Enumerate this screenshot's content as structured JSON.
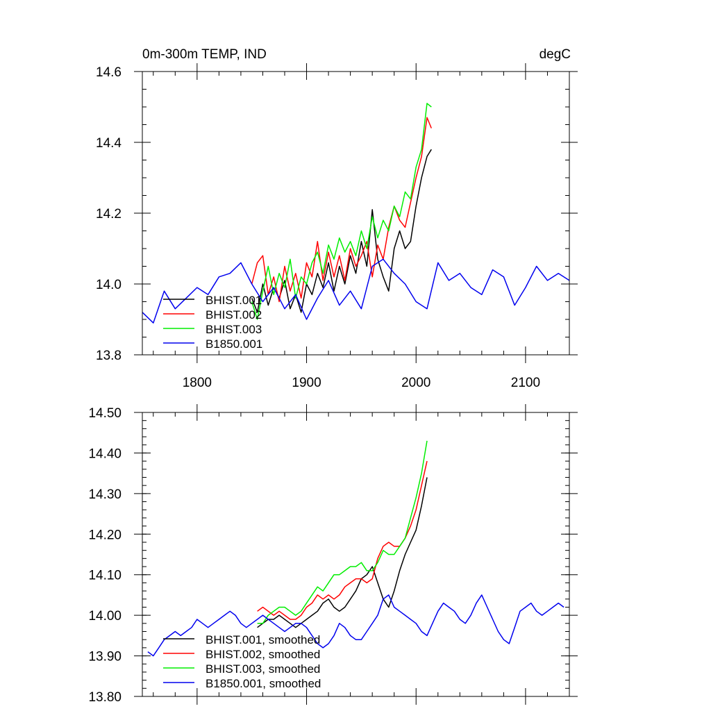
{
  "chart_data": [
    {
      "type": "line",
      "title": "0m-300m TEMP, IND",
      "units": "degC",
      "xlim": [
        1750,
        2140
      ],
      "ylim": [
        13.8,
        14.6
      ],
      "xticks": [
        1800,
        1900,
        2000,
        2100
      ],
      "yticks": [
        13.8,
        14.0,
        14.2,
        14.4,
        14.6
      ],
      "ytick_labels": [
        "13.8",
        "14.0",
        "14.2",
        "14.4",
        "14.6"
      ],
      "xtick_labels": [
        "1800",
        "1900",
        "2000",
        "2100"
      ],
      "legend_position": "bottom-left",
      "series": [
        {
          "name": "BHIST.001",
          "color": "#000000",
          "x": [
            1850,
            1855,
            1860,
            1865,
            1870,
            1875,
            1880,
            1885,
            1890,
            1895,
            1900,
            1905,
            1910,
            1915,
            1920,
            1925,
            1930,
            1935,
            1940,
            1945,
            1950,
            1955,
            1960,
            1965,
            1970,
            1975,
            1980,
            1985,
            1990,
            1995,
            2000,
            2005,
            2010,
            2014
          ],
          "y": [
            13.96,
            13.92,
            14.0,
            13.94,
            13.99,
            13.96,
            14.01,
            13.93,
            13.97,
            13.92,
            14.0,
            13.97,
            14.03,
            13.99,
            14.06,
            13.98,
            14.05,
            14.0,
            14.08,
            14.03,
            14.12,
            14.05,
            14.21,
            14.07,
            14.02,
            13.98,
            14.1,
            14.15,
            14.1,
            14.12,
            14.22,
            14.3,
            14.36,
            14.38
          ]
        },
        {
          "name": "BHIST.002",
          "color": "#ff0000",
          "x": [
            1850,
            1855,
            1860,
            1865,
            1870,
            1875,
            1880,
            1885,
            1890,
            1895,
            1900,
            1905,
            1910,
            1915,
            1920,
            1925,
            1930,
            1935,
            1940,
            1945,
            1950,
            1955,
            1960,
            1965,
            1970,
            1975,
            1980,
            1985,
            1990,
            1995,
            2000,
            2005,
            2010,
            2014
          ],
          "y": [
            14.0,
            14.06,
            14.08,
            13.97,
            14.02,
            13.95,
            14.05,
            13.98,
            14.03,
            13.96,
            14.06,
            14.02,
            14.12,
            14.01,
            14.09,
            14.02,
            14.08,
            14.01,
            14.1,
            14.05,
            14.08,
            14.12,
            14.02,
            14.11,
            14.07,
            14.16,
            14.22,
            14.18,
            14.16,
            14.23,
            14.3,
            14.36,
            14.47,
            14.44
          ]
        },
        {
          "name": "BHIST.003",
          "color": "#00ee00",
          "x": [
            1850,
            1855,
            1860,
            1865,
            1870,
            1875,
            1880,
            1885,
            1890,
            1895,
            1900,
            1905,
            1910,
            1915,
            1920,
            1925,
            1930,
            1935,
            1940,
            1945,
            1950,
            1955,
            1960,
            1965,
            1970,
            1975,
            1980,
            1985,
            1990,
            1995,
            2000,
            2005,
            2010,
            2014
          ],
          "y": [
            13.95,
            13.9,
            13.98,
            14.05,
            13.97,
            14.03,
            13.99,
            14.07,
            13.96,
            14.02,
            14.0,
            14.06,
            14.09,
            14.03,
            14.11,
            14.07,
            14.13,
            14.09,
            14.12,
            14.08,
            14.15,
            14.1,
            14.19,
            14.13,
            14.18,
            14.15,
            14.22,
            14.19,
            14.26,
            14.24,
            14.33,
            14.38,
            14.51,
            14.5
          ]
        },
        {
          "name": "B1850.001",
          "color": "#0000ee",
          "x": [
            1750,
            1760,
            1770,
            1780,
            1790,
            1800,
            1810,
            1820,
            1830,
            1840,
            1850,
            1860,
            1870,
            1880,
            1890,
            1900,
            1910,
            1920,
            1930,
            1940,
            1950,
            1960,
            1970,
            1980,
            1990,
            2000,
            2010,
            2020,
            2030,
            2040,
            2050,
            2060,
            2070,
            2080,
            2090,
            2100,
            2110,
            2120,
            2130,
            2140
          ],
          "y": [
            13.92,
            13.89,
            13.98,
            13.93,
            13.96,
            13.99,
            13.97,
            14.02,
            14.03,
            14.06,
            14.0,
            13.95,
            13.99,
            13.93,
            13.97,
            13.9,
            13.96,
            14.01,
            13.94,
            13.98,
            13.93,
            14.05,
            14.07,
            14.03,
            14.0,
            13.95,
            13.93,
            14.06,
            14.01,
            14.03,
            13.99,
            13.97,
            14.04,
            14.02,
            13.94,
            13.99,
            14.05,
            14.01,
            14.03,
            14.01
          ]
        }
      ]
    },
    {
      "type": "line",
      "title": "",
      "xlim": [
        1750,
        2140
      ],
      "ylim": [
        13.8,
        14.5
      ],
      "xticks": [
        1800,
        1900,
        2000,
        2100
      ],
      "yticks": [
        13.8,
        13.9,
        14.0,
        14.1,
        14.2,
        14.3,
        14.4,
        14.5
      ],
      "ytick_labels": [
        "13.80",
        "13.90",
        "14.00",
        "14.10",
        "14.20",
        "14.30",
        "14.40",
        "14.50"
      ],
      "legend_position": "bottom-left",
      "series": [
        {
          "name": "BHIST.001, smoothed",
          "color": "#000000",
          "x": [
            1855,
            1860,
            1865,
            1870,
            1875,
            1880,
            1885,
            1890,
            1895,
            1900,
            1905,
            1910,
            1915,
            1920,
            1925,
            1930,
            1935,
            1940,
            1945,
            1950,
            1955,
            1960,
            1965,
            1970,
            1975,
            1980,
            1985,
            1990,
            1995,
            2000,
            2005,
            2010
          ],
          "y": [
            13.97,
            13.98,
            13.99,
            13.99,
            14.0,
            13.99,
            13.98,
            13.97,
            13.98,
            13.99,
            14.0,
            14.01,
            14.03,
            14.04,
            14.02,
            14.01,
            14.02,
            14.04,
            14.06,
            14.09,
            14.1,
            14.12,
            14.08,
            14.04,
            14.02,
            14.06,
            14.11,
            14.15,
            14.18,
            14.21,
            14.27,
            14.34
          ]
        },
        {
          "name": "BHIST.002, smoothed",
          "color": "#ff0000",
          "x": [
            1855,
            1860,
            1865,
            1870,
            1875,
            1880,
            1885,
            1890,
            1895,
            1900,
            1905,
            1910,
            1915,
            1920,
            1925,
            1930,
            1935,
            1940,
            1945,
            1950,
            1955,
            1960,
            1965,
            1970,
            1975,
            1980,
            1985,
            1990,
            1995,
            2000,
            2005,
            2010
          ],
          "y": [
            14.01,
            14.02,
            14.01,
            14.0,
            14.01,
            14.0,
            13.99,
            13.99,
            14.0,
            14.02,
            14.03,
            14.05,
            14.04,
            14.05,
            14.04,
            14.05,
            14.07,
            14.08,
            14.09,
            14.09,
            14.08,
            14.09,
            14.14,
            14.17,
            14.18,
            14.17,
            14.17,
            14.19,
            14.22,
            14.26,
            14.32,
            14.38
          ]
        },
        {
          "name": "BHIST.003, smoothed",
          "color": "#00ee00",
          "x": [
            1855,
            1860,
            1865,
            1870,
            1875,
            1880,
            1885,
            1890,
            1895,
            1900,
            1905,
            1910,
            1915,
            1920,
            1925,
            1930,
            1935,
            1940,
            1945,
            1950,
            1955,
            1960,
            1965,
            1970,
            1975,
            1980,
            1985,
            1990,
            1995,
            2000,
            2005,
            2010
          ],
          "y": [
            13.98,
            13.98,
            14.0,
            14.01,
            14.02,
            14.02,
            14.01,
            14.0,
            14.01,
            14.03,
            14.05,
            14.07,
            14.06,
            14.08,
            14.1,
            14.1,
            14.11,
            14.12,
            14.12,
            14.13,
            14.11,
            14.11,
            14.13,
            14.16,
            14.15,
            14.15,
            14.17,
            14.19,
            14.24,
            14.29,
            14.35,
            14.43
          ]
        },
        {
          "name": "B1850.001, smoothed",
          "color": "#0000ee",
          "x": [
            1755,
            1760,
            1765,
            1770,
            1775,
            1780,
            1785,
            1790,
            1795,
            1800,
            1805,
            1810,
            1815,
            1820,
            1825,
            1830,
            1835,
            1840,
            1845,
            1850,
            1855,
            1860,
            1865,
            1870,
            1875,
            1880,
            1885,
            1890,
            1895,
            1900,
            1905,
            1910,
            1915,
            1920,
            1925,
            1930,
            1935,
            1940,
            1945,
            1950,
            1955,
            1960,
            1965,
            1970,
            1975,
            1980,
            1985,
            1990,
            1995,
            2000,
            2005,
            2010,
            2015,
            2020,
            2025,
            2030,
            2035,
            2040,
            2045,
            2050,
            2055,
            2060,
            2065,
            2070,
            2075,
            2080,
            2085,
            2090,
            2095,
            2100,
            2105,
            2110,
            2115,
            2120,
            2125,
            2130,
            2135
          ],
          "y": [
            13.91,
            13.9,
            13.92,
            13.94,
            13.95,
            13.96,
            13.95,
            13.96,
            13.97,
            13.99,
            13.98,
            13.97,
            13.98,
            13.99,
            14.0,
            14.01,
            14.0,
            13.98,
            13.97,
            13.98,
            13.99,
            14.0,
            13.99,
            13.98,
            13.97,
            13.96,
            13.97,
            13.98,
            13.98,
            13.97,
            13.95,
            13.93,
            13.92,
            13.93,
            13.95,
            13.98,
            13.97,
            13.95,
            13.94,
            13.94,
            13.96,
            13.98,
            14.0,
            14.04,
            14.05,
            14.02,
            14.01,
            14.0,
            13.99,
            13.98,
            13.96,
            13.95,
            13.98,
            14.01,
            14.03,
            14.02,
            14.01,
            13.99,
            13.98,
            14.0,
            14.03,
            14.05,
            14.02,
            13.99,
            13.96,
            13.94,
            13.93,
            13.97,
            14.01,
            14.02,
            14.03,
            14.01,
            14.0,
            14.01,
            14.02,
            14.03,
            14.02
          ]
        }
      ]
    }
  ]
}
